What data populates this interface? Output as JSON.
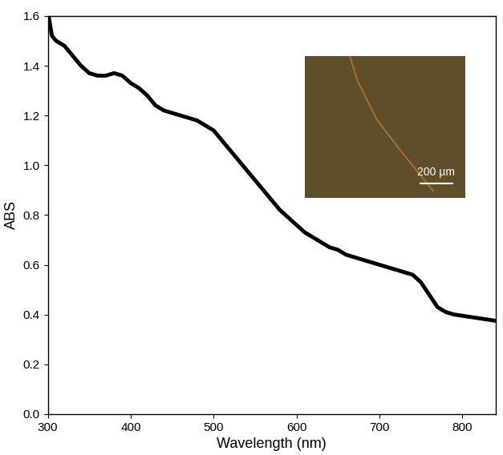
{
  "chart_data": {
    "type": "line",
    "x_label": "Wavelength (nm)",
    "y_label": "ABS",
    "annotations": [
      "200 µm"
    ],
    "x": [
      301,
      305,
      310,
      320,
      330,
      340,
      350,
      360,
      370,
      380,
      390,
      400,
      410,
      420,
      430,
      440,
      450,
      460,
      470,
      480,
      490,
      500,
      510,
      520,
      530,
      540,
      550,
      560,
      570,
      580,
      590,
      600,
      610,
      620,
      630,
      640,
      650,
      660,
      670,
      680,
      690,
      700,
      710,
      720,
      730,
      740,
      750,
      760,
      770,
      780,
      790,
      800,
      820,
      840
    ],
    "values": [
      1.6,
      1.52,
      1.5,
      1.48,
      1.44,
      1.4,
      1.37,
      1.36,
      1.36,
      1.37,
      1.36,
      1.33,
      1.31,
      1.28,
      1.24,
      1.22,
      1.21,
      1.2,
      1.19,
      1.18,
      1.16,
      1.14,
      1.1,
      1.06,
      1.02,
      0.98,
      0.94,
      0.9,
      0.86,
      0.82,
      0.79,
      0.76,
      0.73,
      0.71,
      0.69,
      0.67,
      0.66,
      0.64,
      0.63,
      0.62,
      0.61,
      0.6,
      0.59,
      0.58,
      0.57,
      0.56,
      0.53,
      0.48,
      0.43,
      0.41,
      0.4,
      0.395,
      0.385,
      0.375
    ],
    "color": "#000000",
    "xlim": [
      300,
      840
    ],
    "xticks": [
      300,
      400,
      500,
      600,
      700,
      800
    ],
    "ylim": [
      0,
      1.6
    ],
    "yticks": [
      {
        "value": 0,
        "label": "0.0"
      },
      {
        "value": 0.2,
        "label": "0.2"
      },
      {
        "value": 0.4,
        "label": "0.4"
      },
      {
        "value": 0.6,
        "label": "0.6"
      },
      {
        "value": 0.8,
        "label": "0.8"
      },
      {
        "value": 1.0,
        "label": "1.0"
      },
      {
        "value": 1.2,
        "label": "1.2"
      },
      {
        "value": 1.4,
        "label": "1.4"
      },
      {
        "value": 1.6,
        "label": "1.6"
      }
    ],
    "grid": false
  }
}
